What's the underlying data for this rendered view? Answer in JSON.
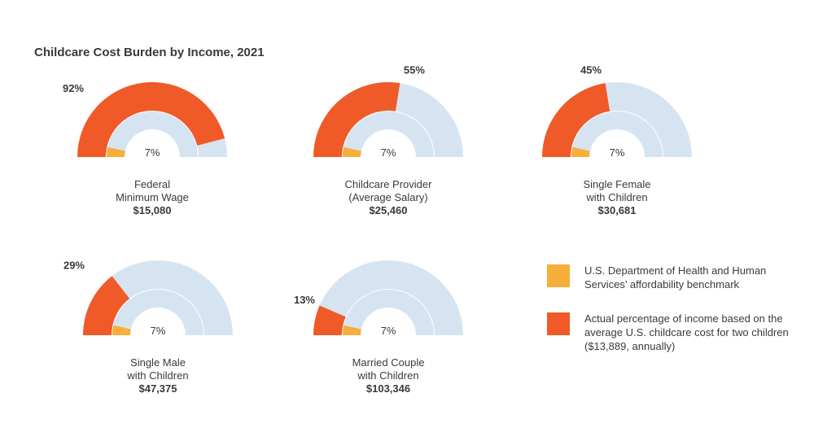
{
  "title": "Childcare Cost Burden by Income, 2021",
  "colors": {
    "actual": "#f05a28",
    "benchmark": "#f7ae3b",
    "track": "#d6e4f2"
  },
  "legend": {
    "benchmark": "U.S. Department of Health and Human Services’ affordability benchmark",
    "actual": "Actual percentage of income based on the average U.S. childcare cost for two children ($13,889, annually)"
  },
  "chart_data": {
    "type": "gauge",
    "max": 100,
    "gauges": [
      {
        "label_lines": [
          "Federal",
          "Minimum Wage"
        ],
        "income": "$15,080",
        "actual_pct": 92,
        "actual_label": "92%",
        "benchmark_pct": 7,
        "benchmark_label": "7%"
      },
      {
        "label_lines": [
          "Childcare Provider",
          "(Average Salary)"
        ],
        "income": "$25,460",
        "actual_pct": 55,
        "actual_label": "55%",
        "benchmark_pct": 7,
        "benchmark_label": "7%"
      },
      {
        "label_lines": [
          "Single Female",
          "with Children"
        ],
        "income": "$30,681",
        "actual_pct": 45,
        "actual_label": "45%",
        "benchmark_pct": 7,
        "benchmark_label": "7%"
      },
      {
        "label_lines": [
          "Single Male",
          "with Children"
        ],
        "income": "$47,375",
        "actual_pct": 29,
        "actual_label": "29%",
        "benchmark_pct": 7,
        "benchmark_label": "7%"
      },
      {
        "label_lines": [
          "Married Couple",
          "with Children"
        ],
        "income": "$103,346",
        "actual_pct": 13,
        "actual_label": "13%",
        "benchmark_pct": 7,
        "benchmark_label": "7%"
      }
    ]
  }
}
